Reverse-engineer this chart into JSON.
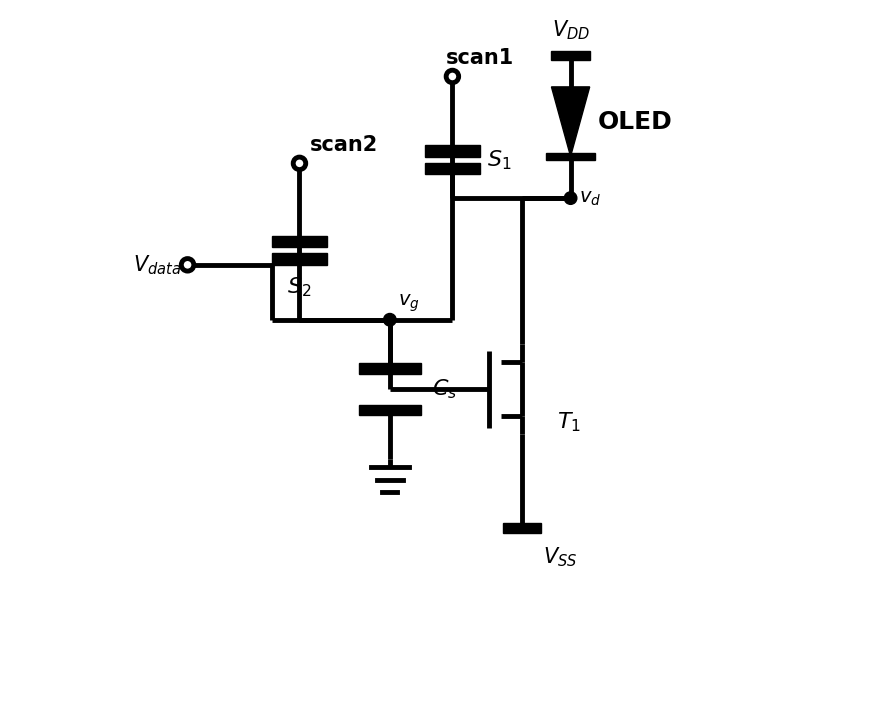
{
  "bg": "#ffffff",
  "lw": 3.5,
  "lw_thin": 2.5,
  "fig_w": 8.77,
  "fig_h": 7.09,
  "labels": {
    "scan1": "scan1",
    "scan2": "scan2",
    "vdata": "$V_{data}$",
    "vdd": "$V_{DD}$",
    "vss": "$V_{SS}$",
    "vg": "$v_g$",
    "vd": "$v_d$",
    "s1": "$S_1$",
    "s2": "$S_2$",
    "cs": "$C_s$",
    "t1": "$T_1$",
    "oled": "OLED"
  },
  "fontsizes": {
    "scan": 15,
    "label_small": 13,
    "label_large": 16,
    "vdd_vss": 15,
    "vdata": 15,
    "component": 16,
    "oled": 18
  }
}
